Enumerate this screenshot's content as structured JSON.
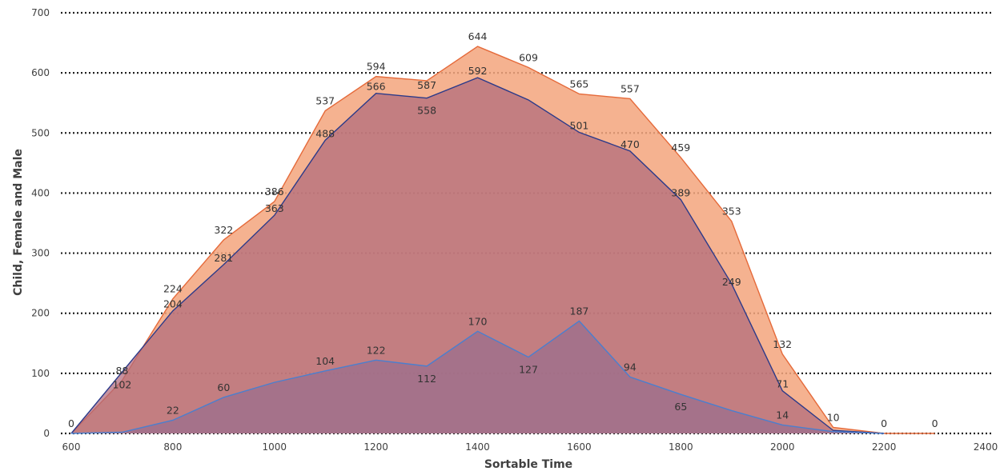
{
  "chart_data": {
    "type": "area",
    "xlabel": "Sortable Time",
    "ylabel": "Child, Female and Male",
    "xlim": [
      600,
      2400
    ],
    "ylim": [
      0,
      700
    ],
    "x_ticks": [
      "600",
      "800",
      "1000",
      "1200",
      "1400",
      "1600",
      "1800",
      "2000",
      "2200",
      "2400"
    ],
    "y_ticks": [
      "0",
      "100",
      "200",
      "300",
      "400",
      "500",
      "600",
      "700"
    ],
    "grid": true,
    "series": [
      {
        "color": "#f3a57c",
        "line_color": "#e56a3a",
        "x": [
          600,
          700,
          800,
          900,
          1000,
          1100,
          1200,
          1300,
          1400,
          1500,
          1600,
          1700,
          1800,
          1900,
          2000,
          2100,
          2200,
          2300
        ],
        "values": [
          0,
          88,
          224,
          322,
          386,
          537,
          594,
          587,
          644,
          609,
          565,
          557,
          459,
          353,
          132,
          10,
          0,
          0
        ],
        "labels": [
          "0",
          "88",
          "224",
          "322",
          "386",
          "537",
          "594",
          "587",
          "644",
          "609",
          "565",
          "557",
          "459",
          "353",
          "132",
          "10",
          "0",
          "0"
        ]
      },
      {
        "color": "#b0697c",
        "line_color": "#2b3a8a",
        "x": [
          600,
          700,
          800,
          900,
          1000,
          1100,
          1200,
          1300,
          1400,
          1500,
          1600,
          1700,
          1800,
          1900,
          2000,
          2100,
          2200
        ],
        "values": [
          0,
          102,
          204,
          281,
          363,
          488,
          566,
          558,
          592,
          555,
          501,
          470,
          389,
          249,
          71,
          5,
          0
        ],
        "labels": [
          "",
          "102",
          "204",
          "281",
          "363",
          "488",
          "566",
          "558",
          "592",
          "",
          "501",
          "470",
          "389",
          "249",
          "71",
          "",
          ""
        ]
      },
      {
        "color": "#9a6d8e",
        "line_color": "#4a7fcf",
        "x": [
          600,
          700,
          800,
          900,
          1000,
          1100,
          1200,
          1300,
          1400,
          1500,
          1600,
          1700,
          1800,
          1900,
          2000,
          2100,
          2200
        ],
        "values": [
          0,
          2,
          22,
          60,
          85,
          104,
          122,
          112,
          170,
          127,
          187,
          94,
          65,
          38,
          14,
          3,
          0
        ],
        "labels": [
          "",
          "",
          "22",
          "60",
          "",
          "104",
          "122",
          "112",
          "170",
          "127",
          "187",
          "94",
          "65",
          "",
          "14",
          "",
          ""
        ]
      }
    ]
  }
}
